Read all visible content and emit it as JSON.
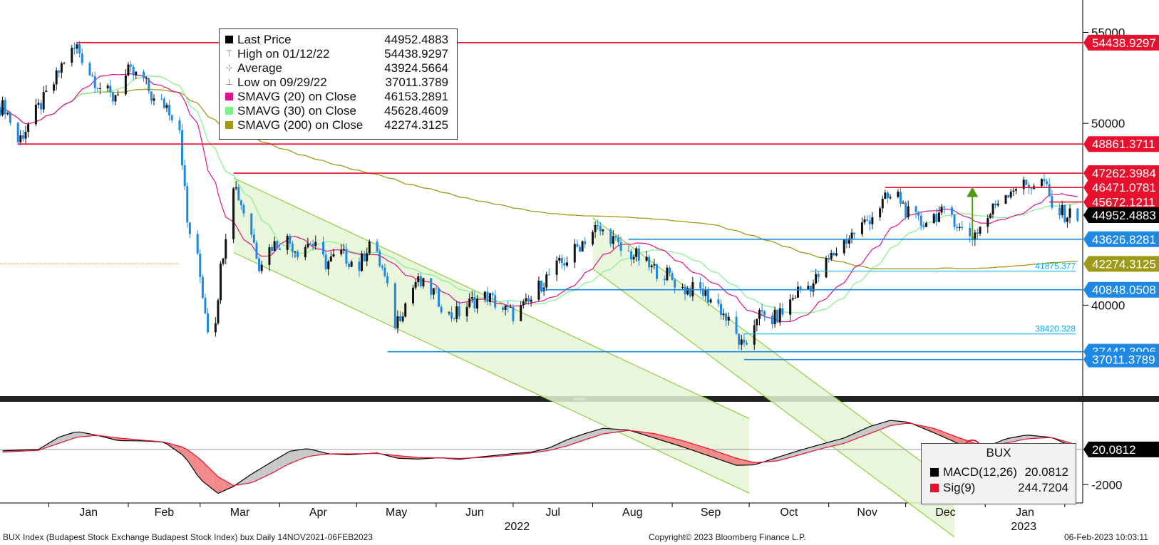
{
  "chart_data": [
    {
      "type": "candlestick",
      "instrument": "BUX",
      "ylim": [
        35000,
        56000
      ],
      "y_ticks": [
        40000,
        50000,
        55000
      ],
      "x_month_labels": [
        "Jan",
        "Feb",
        "Mar",
        "Apr",
        "May",
        "Jun",
        "Jul",
        "Aug",
        "Sep",
        "Oct",
        "Nov",
        "Dec",
        "Jan"
      ],
      "x_year_labels": [
        "2022",
        "2023"
      ],
      "legend": [
        {
          "label": "Last Price",
          "value": "44952.4883",
          "color": "#000000",
          "icon": "square"
        },
        {
          "label": "High on 01/12/22",
          "value": "54438.9297",
          "color": "#777777",
          "icon": "high-marker-icon"
        },
        {
          "label": "Average",
          "value": "43924.5664",
          "color": "#777777",
          "icon": "average-marker-icon"
        },
        {
          "label": "Low on 09/29/22",
          "value": "37011.3789",
          "color": "#777777",
          "icon": "low-marker-icon"
        },
        {
          "label": "SMAVG (20)  on Close",
          "value": "46153.2891",
          "color": "#e0138c",
          "icon": "square"
        },
        {
          "label": "SMAVG (30)  on Close",
          "value": "45628.4609",
          "color": "#7ef28a",
          "icon": "square"
        },
        {
          "label": "SMAVG (200)  on Close",
          "value": "42274.3125",
          "color": "#9c9a17",
          "icon": "square"
        }
      ],
      "series_colors": {
        "up": "#111111",
        "down": "#1e88e5",
        "sma20": "#e0138c",
        "sma30": "#7ef28a",
        "sma200": "#9c9a17",
        "channel_fill": "#e6f5d6",
        "channel_line": "#8fcf3f"
      },
      "horizontal_levels": [
        {
          "value": 54438.9297,
          "label": "54438.9297",
          "color": "#e8112d",
          "x_start": "2022-01-12"
        },
        {
          "value": 48861.3711,
          "label": "48861.3711",
          "color": "#e8112d",
          "x_start": "2021-12-20"
        },
        {
          "value": 47262.3984,
          "label": "47262.3984",
          "color": "#e8112d",
          "x_start": "2022-03-14"
        },
        {
          "value": 46471.0781,
          "label": "46471.0781",
          "color": "#e8112d",
          "x_start": "2022-11-23"
        },
        {
          "value": 45672.1211,
          "label": "45672.1211",
          "color": "#e8112d",
          "x_start": "2023-01-26"
        },
        {
          "value": 44952.4883,
          "label": "44952.4883",
          "color": "#000000",
          "x_start": null
        },
        {
          "value": 43626.8281,
          "label": "43626.8281",
          "color": "#1e88e5",
          "x_start": "2022-08-15"
        },
        {
          "value": 42274.3125,
          "label": "42274.3125",
          "color": "#9c9a17",
          "x_start": null
        },
        {
          "value": 40848.0508,
          "label": "40848.0508",
          "color": "#1e88e5",
          "x_start": "2022-07-11"
        },
        {
          "value": 37442.3906,
          "label": "37442.3906",
          "color": "#1e88e5",
          "x_start": "2022-05-13"
        },
        {
          "value": 37011.3789,
          "label": "37011.3789",
          "color": "#1e88e5",
          "x_start": "2022-09-29"
        }
      ],
      "inline_levels": [
        {
          "value": 41875.377,
          "label": "41875.377",
          "color": "#00aeef",
          "x_start": "2022-10-25"
        },
        {
          "value": 38420.328,
          "label": "38420.328",
          "color": "#00aeef",
          "x_start": "2022-09-29"
        }
      ],
      "channels": [
        {
          "upper_start": [
            "2022-03-14",
            47000
          ],
          "upper_end": [
            "2022-07-15",
            38900
          ],
          "lower_start": [
            "2022-03-14",
            42900
          ],
          "lower_end": [
            "2022-07-15",
            34800
          ],
          "extend_to": "2022-10-01"
        },
        {
          "upper_start": [
            "2022-08-01",
            44800
          ],
          "upper_end": [
            "2022-10-05",
            38000
          ],
          "lower_start": [
            "2022-08-01",
            42000
          ],
          "lower_end": [
            "2022-10-05",
            35200
          ],
          "extend_to": "2022-12-20"
        }
      ],
      "arrow": {
        "x": "2022-12-27",
        "from": 43600,
        "to": 46500,
        "color": "#4f9a12"
      },
      "close_points": [
        [
          "2021-12-15",
          50900
        ],
        [
          "2021-12-20",
          49000
        ],
        [
          "2021-12-27",
          50600
        ],
        [
          "2022-01-03",
          52200
        ],
        [
          "2022-01-07",
          53500
        ],
        [
          "2022-01-12",
          54200
        ],
        [
          "2022-01-17",
          52800
        ],
        [
          "2022-01-21",
          52000
        ],
        [
          "2022-01-26",
          51400
        ],
        [
          "2022-02-01",
          52800
        ],
        [
          "2022-02-07",
          52400
        ],
        [
          "2022-02-11",
          51200
        ],
        [
          "2022-02-16",
          51000
        ],
        [
          "2022-02-21",
          49800
        ],
        [
          "2022-02-24",
          44500
        ],
        [
          "2022-02-28",
          42500
        ],
        [
          "2022-03-04",
          38800
        ],
        [
          "2022-03-07",
          39300
        ],
        [
          "2022-03-09",
          42000
        ],
        [
          "2022-03-11",
          44000
        ],
        [
          "2022-03-14",
          46800
        ],
        [
          "2022-03-17",
          45600
        ],
        [
          "2022-03-21",
          44000
        ],
        [
          "2022-03-24",
          42300
        ],
        [
          "2022-03-29",
          43300
        ],
        [
          "2022-04-04",
          43600
        ],
        [
          "2022-04-08",
          43000
        ],
        [
          "2022-04-13",
          43500
        ],
        [
          "2022-04-19",
          42300
        ],
        [
          "2022-04-25",
          42800
        ],
        [
          "2022-05-02",
          42100
        ],
        [
          "2022-05-06",
          43500
        ],
        [
          "2022-05-11",
          42000
        ],
        [
          "2022-05-16",
          39000
        ],
        [
          "2022-05-19",
          39800
        ],
        [
          "2022-05-24",
          41300
        ],
        [
          "2022-05-31",
          40700
        ],
        [
          "2022-06-06",
          39400
        ],
        [
          "2022-06-10",
          39600
        ],
        [
          "2022-06-15",
          40200
        ],
        [
          "2022-06-21",
          40500
        ],
        [
          "2022-06-27",
          39800
        ],
        [
          "2022-07-01",
          39500
        ],
        [
          "2022-07-07",
          40100
        ],
        [
          "2022-07-12",
          41200
        ],
        [
          "2022-07-18",
          42100
        ],
        [
          "2022-07-22",
          42500
        ],
        [
          "2022-07-28",
          43500
        ],
        [
          "2022-08-02",
          44200
        ],
        [
          "2022-08-08",
          43800
        ],
        [
          "2022-08-12",
          43000
        ],
        [
          "2022-08-18",
          42700
        ],
        [
          "2022-08-24",
          42000
        ],
        [
          "2022-08-30",
          41700
        ],
        [
          "2022-09-05",
          40900
        ],
        [
          "2022-09-12",
          40800
        ],
        [
          "2022-09-19",
          40000
        ],
        [
          "2022-09-26",
          38300
        ],
        [
          "2022-09-29",
          37500
        ],
        [
          "2022-10-04",
          39500
        ],
        [
          "2022-10-10",
          39200
        ],
        [
          "2022-10-14",
          39600
        ],
        [
          "2022-10-20",
          40800
        ],
        [
          "2022-10-26",
          41200
        ],
        [
          "2022-11-01",
          42500
        ],
        [
          "2022-11-07",
          43500
        ],
        [
          "2022-11-11",
          44000
        ],
        [
          "2022-11-17",
          44800
        ],
        [
          "2022-11-23",
          45800
        ],
        [
          "2022-11-28",
          46000
        ],
        [
          "2022-12-02",
          45000
        ],
        [
          "2022-12-07",
          44500
        ],
        [
          "2022-12-13",
          45000
        ],
        [
          "2022-12-19",
          45000
        ],
        [
          "2022-12-22",
          44200
        ],
        [
          "2022-12-27",
          43800
        ],
        [
          "2023-01-02",
          44800
        ],
        [
          "2023-01-06",
          45800
        ],
        [
          "2023-01-12",
          46500
        ],
        [
          "2023-01-18",
          46600
        ],
        [
          "2023-01-24",
          46800
        ],
        [
          "2023-01-27",
          45300
        ],
        [
          "2023-02-01",
          45000
        ],
        [
          "2023-02-06",
          44952
        ]
      ]
    },
    {
      "type": "line",
      "name": "BUX",
      "ylim": [
        -3000,
        2300
      ],
      "y_ticks": [
        -2000
      ],
      "series": [
        {
          "name": "MACD(12,26)",
          "value": "20.0812",
          "color": "#000000"
        },
        {
          "name": "Sig(9)",
          "value": "244.7204",
          "color": "#e8112d"
        }
      ],
      "last_value_label": "20.0812",
      "macd_points": [
        [
          "2021-12-14",
          -80
        ],
        [
          "2021-12-28",
          0
        ],
        [
          "2022-01-05",
          700
        ],
        [
          "2022-01-12",
          1020
        ],
        [
          "2022-01-20",
          800
        ],
        [
          "2022-01-28",
          500
        ],
        [
          "2022-02-07",
          480
        ],
        [
          "2022-02-15",
          420
        ],
        [
          "2022-02-23",
          -400
        ],
        [
          "2022-03-01",
          -1700
        ],
        [
          "2022-03-08",
          -2500
        ],
        [
          "2022-03-14",
          -2100
        ],
        [
          "2022-03-21",
          -1400
        ],
        [
          "2022-03-29",
          -700
        ],
        [
          "2022-04-05",
          -100
        ],
        [
          "2022-04-12",
          50
        ],
        [
          "2022-04-20",
          -250
        ],
        [
          "2022-04-28",
          -300
        ],
        [
          "2022-05-09",
          -200
        ],
        [
          "2022-05-17",
          -500
        ],
        [
          "2022-05-25",
          -550
        ],
        [
          "2022-06-02",
          -470
        ],
        [
          "2022-06-10",
          -560
        ],
        [
          "2022-06-20",
          -400
        ],
        [
          "2022-06-30",
          -250
        ],
        [
          "2022-07-08",
          -150
        ],
        [
          "2022-07-15",
          80
        ],
        [
          "2022-07-22",
          550
        ],
        [
          "2022-07-29",
          900
        ],
        [
          "2022-08-05",
          1200
        ],
        [
          "2022-08-15",
          1100
        ],
        [
          "2022-08-25",
          650
        ],
        [
          "2022-09-05",
          150
        ],
        [
          "2022-09-15",
          -350
        ],
        [
          "2022-09-26",
          -900
        ],
        [
          "2022-10-03",
          -880
        ],
        [
          "2022-10-12",
          -450
        ],
        [
          "2022-10-20",
          -80
        ],
        [
          "2022-10-28",
          250
        ],
        [
          "2022-11-07",
          650
        ],
        [
          "2022-11-17",
          1300
        ],
        [
          "2022-11-25",
          1650
        ],
        [
          "2022-12-02",
          1550
        ],
        [
          "2022-12-12",
          950
        ],
        [
          "2022-12-22",
          300
        ],
        [
          "2022-12-30",
          0
        ],
        [
          "2023-01-09",
          600
        ],
        [
          "2023-01-17",
          820
        ],
        [
          "2023-01-27",
          680
        ],
        [
          "2023-02-06",
          20
        ]
      ],
      "signal_points": [
        [
          "2021-12-14",
          -150
        ],
        [
          "2021-12-28",
          -50
        ],
        [
          "2022-01-05",
          350
        ],
        [
          "2022-01-12",
          700
        ],
        [
          "2022-01-20",
          800
        ],
        [
          "2022-01-28",
          650
        ],
        [
          "2022-02-07",
          520
        ],
        [
          "2022-02-15",
          420
        ],
        [
          "2022-02-23",
          100
        ],
        [
          "2022-03-01",
          -550
        ],
        [
          "2022-03-08",
          -1550
        ],
        [
          "2022-03-14",
          -2050
        ],
        [
          "2022-03-21",
          -1900
        ],
        [
          "2022-03-29",
          -1350
        ],
        [
          "2022-04-05",
          -800
        ],
        [
          "2022-04-12",
          -400
        ],
        [
          "2022-04-20",
          -250
        ],
        [
          "2022-04-28",
          -250
        ],
        [
          "2022-05-09",
          -230
        ],
        [
          "2022-05-17",
          -350
        ],
        [
          "2022-05-25",
          -460
        ],
        [
          "2022-06-02",
          -480
        ],
        [
          "2022-06-10",
          -510
        ],
        [
          "2022-06-20",
          -450
        ],
        [
          "2022-06-30",
          -330
        ],
        [
          "2022-07-08",
          -200
        ],
        [
          "2022-07-15",
          -60
        ],
        [
          "2022-07-22",
          200
        ],
        [
          "2022-07-29",
          550
        ],
        [
          "2022-08-05",
          880
        ],
        [
          "2022-08-15",
          1080
        ],
        [
          "2022-08-25",
          900
        ],
        [
          "2022-09-05",
          500
        ],
        [
          "2022-09-15",
          50
        ],
        [
          "2022-09-26",
          -500
        ],
        [
          "2022-10-03",
          -750
        ],
        [
          "2022-10-12",
          -650
        ],
        [
          "2022-10-20",
          -330
        ],
        [
          "2022-10-28",
          0
        ],
        [
          "2022-11-07",
          350
        ],
        [
          "2022-11-17",
          900
        ],
        [
          "2022-11-25",
          1350
        ],
        [
          "2022-12-02",
          1500
        ],
        [
          "2022-12-12",
          1200
        ],
        [
          "2022-12-22",
          650
        ],
        [
          "2022-12-30",
          250
        ],
        [
          "2023-01-09",
          350
        ],
        [
          "2023-01-17",
          600
        ],
        [
          "2023-01-27",
          680
        ],
        [
          "2023-02-06",
          245
        ]
      ],
      "crossover_marker": {
        "x": "2022-12-27",
        "value": 80,
        "color": "#e8112d"
      }
    }
  ],
  "footer": {
    "left": "BUX Index (Budapest Stock Exchange Budapest Stock Index) bux  Daily 14NOV2021-06FEB2023",
    "center": "Copyright© 2023 Bloomberg Finance L.P.",
    "right": "06-Feb-2023 10:03:11"
  }
}
